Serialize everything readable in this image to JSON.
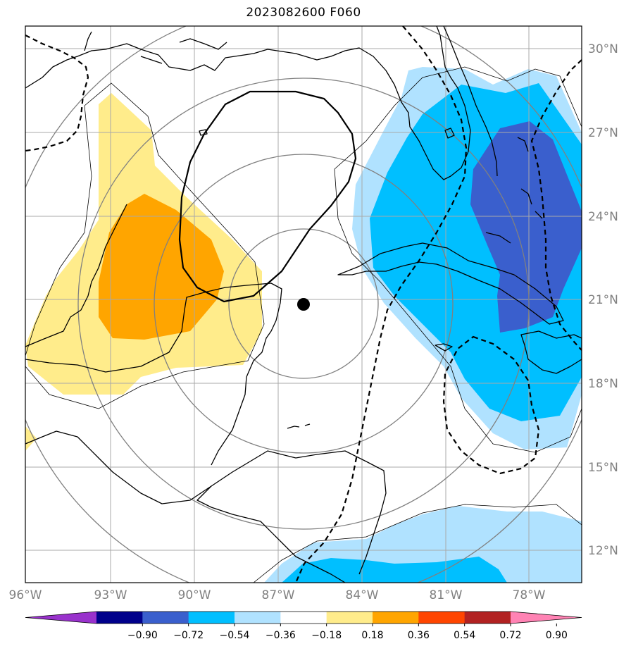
{
  "title": "2023082600 F060",
  "lat_labels": [
    "30°N",
    "27°N",
    "24°N",
    "21°N",
    "18°N",
    "15°N",
    "12°N"
  ],
  "lon_labels": [
    "96°W",
    "93°W",
    "90°W",
    "87°W",
    "84°W",
    "81°W",
    "78°W"
  ],
  "colorbar": {
    "tick_labels": [
      "−0.90",
      "−0.72",
      "−0.54",
      "−0.36",
      "−0.18",
      "0.18",
      "0.36",
      "0.54",
      "0.72",
      "0.90"
    ],
    "colors": [
      "#9932cc",
      "#00008b",
      "#3a5fcd",
      "#00bfff",
      "#b0e2ff",
      "#ffffff",
      "#ffec8b",
      "#ffa500",
      "#ff4500",
      "#b22222",
      "#ff83b4"
    ]
  },
  "colors": {
    "light_blue": "#b0e2ff",
    "blue": "#00bfff",
    "dark_blue": "#3a5fcd",
    "light_yellow": "#ffec8b",
    "orange": "#ffa500",
    "grid": "#a9a9a9",
    "range_rings": "#808080"
  },
  "storm_marker": "storm-center-marker"
}
